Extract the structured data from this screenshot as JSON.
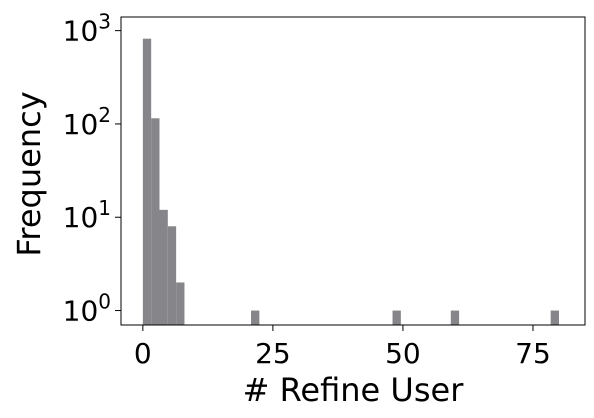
{
  "chart_data": {
    "type": "bar",
    "title": "",
    "xlabel": "# Refine User",
    "ylabel": "Frequency",
    "yscale": "log",
    "xlim": [
      -4.2,
      85
    ],
    "ylim": [
      0.7,
      1400
    ],
    "grid": false,
    "legend": "none",
    "bin_width": 1.6,
    "bars": [
      {
        "x": [
          0.0,
          1.6
        ],
        "count": 820
      },
      {
        "x": [
          1.6,
          3.2
        ],
        "count": 115
      },
      {
        "x": [
          3.2,
          4.8
        ],
        "count": 12
      },
      {
        "x": [
          4.8,
          6.4
        ],
        "count": 8
      },
      {
        "x": [
          6.4,
          8.0
        ],
        "count": 2
      },
      {
        "x": [
          20.8,
          22.4
        ],
        "count": 1
      },
      {
        "x": [
          48.0,
          49.6
        ],
        "count": 1
      },
      {
        "x": [
          59.2,
          60.8
        ],
        "count": 1
      },
      {
        "x": [
          78.4,
          80.0
        ],
        "count": 1
      }
    ],
    "x_ticks": [
      {
        "value": 0,
        "label": "0"
      },
      {
        "value": 25,
        "label": "25"
      },
      {
        "value": 50,
        "label": "50"
      },
      {
        "value": 75,
        "label": "75"
      }
    ],
    "y_ticks": [
      {
        "value": 1,
        "base": "10",
        "exp": "0"
      },
      {
        "value": 10,
        "base": "10",
        "exp": "1"
      },
      {
        "value": 100,
        "base": "10",
        "exp": "2"
      },
      {
        "value": 1000,
        "base": "10",
        "exp": "3"
      }
    ],
    "colors": {
      "bar": "#86868a",
      "axis": "#000000"
    }
  }
}
